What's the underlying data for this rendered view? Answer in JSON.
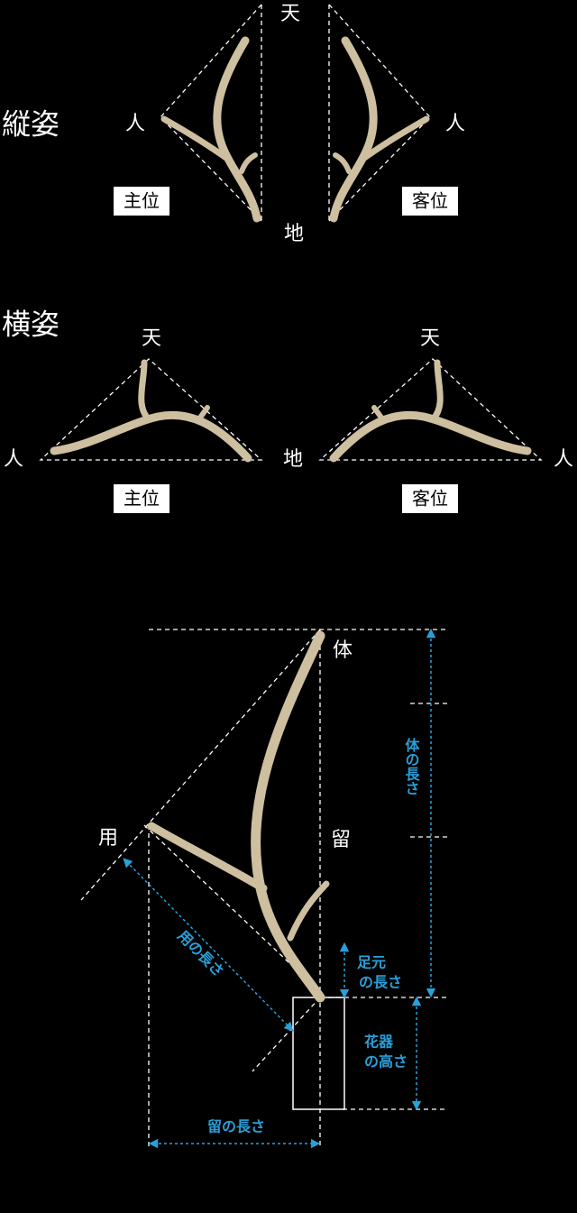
{
  "vertical": {
    "title": "縦姿",
    "top": "天",
    "left": "人",
    "right": "人",
    "bottom": "地",
    "main": "主位",
    "guest": "客位"
  },
  "horizontal": {
    "title": "横姿",
    "top_left": "天",
    "top_right": "天",
    "left": "人",
    "center": "地",
    "right": "人",
    "main": "主位",
    "guest": "客位"
  },
  "proportions": {
    "body": "体",
    "use": "用",
    "stay": "留",
    "body_length": "体の長さ",
    "use_length": "用の長さ",
    "foot_length": [
      "足元",
      "の長さ"
    ],
    "vase_height": [
      "花器",
      "の高さ"
    ],
    "stay_length": "留の長さ"
  }
}
